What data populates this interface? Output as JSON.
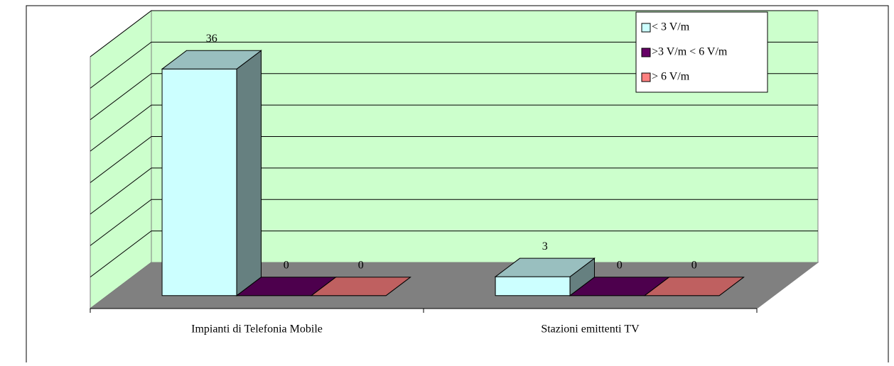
{
  "chart_data": {
    "type": "bar3d",
    "categories": [
      "Impianti di Telefonia Mobile",
      "Stazioni emittenti TV"
    ],
    "series": [
      {
        "name": "< 3 V/m",
        "color": "#ccffff",
        "values": [
          36,
          3
        ]
      },
      {
        "name": ">3 V/m < 6 V/m",
        "color": "#660066",
        "values": [
          0,
          0
        ]
      },
      {
        "name": "> 6 V/m",
        "color": "#ff8080",
        "values": [
          0,
          0
        ]
      }
    ],
    "ylim": [
      0,
      40
    ],
    "yticks": [
      0,
      5,
      10,
      15,
      20,
      25,
      30,
      35,
      40
    ],
    "grid": true,
    "legend": "top-right"
  }
}
